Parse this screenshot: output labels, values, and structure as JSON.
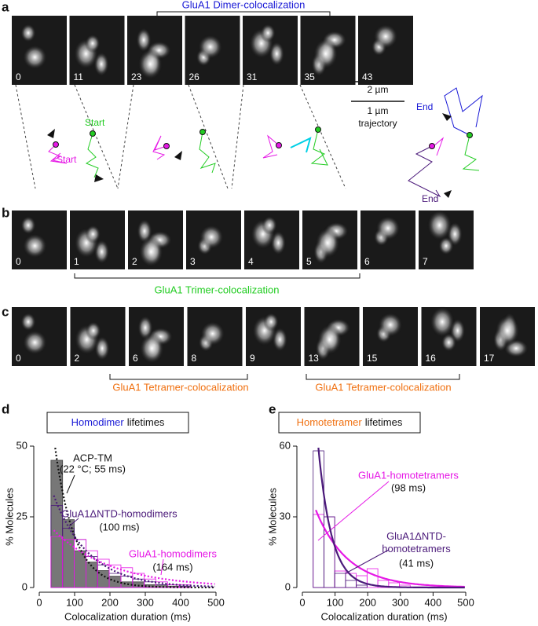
{
  "panels": {
    "a": {
      "label": "a",
      "title": "GluA1 Dimer-colocalization",
      "frames": [
        "0",
        "11",
        "23",
        "26",
        "31",
        "35",
        "43"
      ],
      "scale": [
        "2 µm",
        "1 µm",
        "trajectory"
      ],
      "track_labels": [
        "Start",
        "Start",
        "End",
        "End"
      ]
    },
    "b": {
      "label": "b",
      "frames": [
        "0",
        "1",
        "2",
        "3",
        "4",
        "5",
        "6",
        "7"
      ],
      "bracket": "GluA1 Trimer-colocalization"
    },
    "c": {
      "label": "c",
      "frames": [
        "0",
        "2",
        "6",
        "8",
        "9",
        "13",
        "15",
        "16",
        "17"
      ],
      "brackets": [
        "GluA1 Tetramer-colocalization",
        "GluA1 Tetramer-colocalization"
      ]
    }
  },
  "chart_data": [
    {
      "type": "histogram",
      "panel": "d",
      "title_parts": [
        {
          "text": "Homodimer",
          "color": "#1a1ad6"
        },
        {
          "text": "lifetimes",
          "color": "#111111"
        }
      ],
      "x_label": "Colocalization duration (ms)",
      "y_label": "% Molecules",
      "xlim": [
        0,
        500
      ],
      "ylim": [
        0,
        50
      ],
      "xticks": [
        0,
        100,
        200,
        300,
        400,
        500
      ],
      "yticks": [
        0,
        25,
        50
      ],
      "bins": [
        33,
        66,
        99,
        132,
        165,
        198,
        231,
        264,
        297,
        330,
        363,
        396,
        429
      ],
      "series": [
        {
          "name": "ACP-TM",
          "annotation": "(22 °C; 55 ms)",
          "color": "#111111",
          "fill": "#777777",
          "dashed": true,
          "tau": 55,
          "amplitude": 112,
          "counts": [
            45,
            24,
            13,
            9,
            6,
            4,
            2,
            2,
            1,
            1,
            0.5,
            0.5
          ]
        },
        {
          "name": "GluA1ΔNTD-homodimers",
          "annotation": "(100 ms)",
          "color": "#4b1a7a",
          "fill": null,
          "dashed": true,
          "tau": 100,
          "amplitude": 49,
          "counts": [
            29,
            21,
            17,
            11,
            8,
            5,
            4,
            3,
            2,
            1,
            1,
            0.5
          ]
        },
        {
          "name": "GluA1-homodimers",
          "annotation": "(164 ms)",
          "color": "#e619e6",
          "fill": null,
          "dashed": true,
          "tau": 164,
          "amplitude": 26,
          "counts": [
            18,
            17,
            17,
            13,
            10,
            8,
            7,
            5,
            3,
            2,
            1,
            1
          ]
        }
      ]
    },
    {
      "type": "histogram",
      "panel": "e",
      "title_parts": [
        {
          "text": "Homotetramer",
          "color": "#f07010"
        },
        {
          "text": "lifetimes",
          "color": "#111111"
        }
      ],
      "x_label": "Colocalization duration (ms)",
      "y_label": "% Molecules",
      "xlim": [
        0,
        500
      ],
      "ylim": [
        0,
        60
      ],
      "xticks": [
        0,
        100,
        200,
        300,
        400,
        500
      ],
      "yticks": [
        0,
        30,
        60
      ],
      "bins": [
        33,
        66,
        99,
        132,
        165,
        198,
        231,
        264,
        297,
        330,
        363,
        396
      ],
      "series": [
        {
          "name": "GluA1-homotetramers",
          "annotation": "(98 ms)",
          "color": "#e619e6",
          "fill": null,
          "dashed": false,
          "tau": 98,
          "amplitude": 50,
          "counts": [
            31,
            30,
            7,
            6,
            5,
            8,
            3,
            2,
            1,
            0,
            0
          ]
        },
        {
          "name": "GluA1ΔNTD-homotetramers",
          "annotation": "(41 ms)",
          "color": "#4b1a7a",
          "fill": null,
          "dashed": false,
          "tau": 41,
          "amplitude": 196,
          "counts": [
            58,
            30,
            6,
            3,
            1,
            0,
            0,
            0,
            0,
            0,
            0
          ]
        }
      ]
    }
  ]
}
